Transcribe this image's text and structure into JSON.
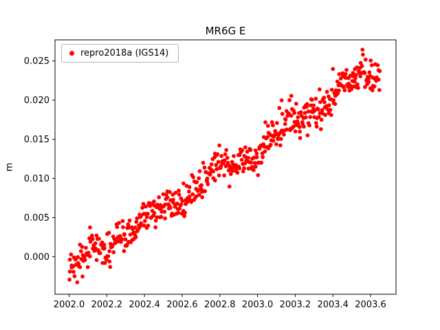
{
  "chart_data": {
    "type": "scatter",
    "title": "MR6G E",
    "xlabel": "",
    "ylabel": "m",
    "xlim": [
      2001.925,
      2003.735
    ],
    "ylim": [
      -0.0048,
      0.0277
    ],
    "grid": false,
    "xticks": [
      2002.0,
      2002.2,
      2002.4,
      2002.6,
      2002.8,
      2003.0,
      2003.2,
      2003.4,
      2003.6
    ],
    "xtick_labels": [
      "2002.0",
      "2002.2",
      "2002.4",
      "2002.6",
      "2002.8",
      "2003.0",
      "2003.2",
      "2003.4",
      "2003.6"
    ],
    "yticks": [
      0.0,
      0.005,
      0.01,
      0.015,
      0.02,
      0.025
    ],
    "ytick_labels": [
      "0.000",
      "0.005",
      "0.010",
      "0.015",
      "0.020",
      "0.025"
    ],
    "legend": {
      "label": "repro2018a (IGS14)",
      "position": "upper-left"
    },
    "series": [
      {
        "name": "repro2018a (IGS14)",
        "color": "#ff0000",
        "marker": "circle",
        "marker_radius": 2.9,
        "n_points": 560,
        "x_start": 2002.0,
        "x_end": 2003.65,
        "y_at_start": -0.0018,
        "slope_per_year": 0.0158,
        "noise_sd": 0.0011,
        "wiggle_amp": 0.0008,
        "wiggle_period": 0.35,
        "wiggle2_amp": 0.0005,
        "wiggle2_period": 0.13,
        "seed": 12345
      }
    ],
    "axes_colors": {
      "frame": "#000000",
      "tick_text": "#000000",
      "background": "#ffffff"
    }
  }
}
